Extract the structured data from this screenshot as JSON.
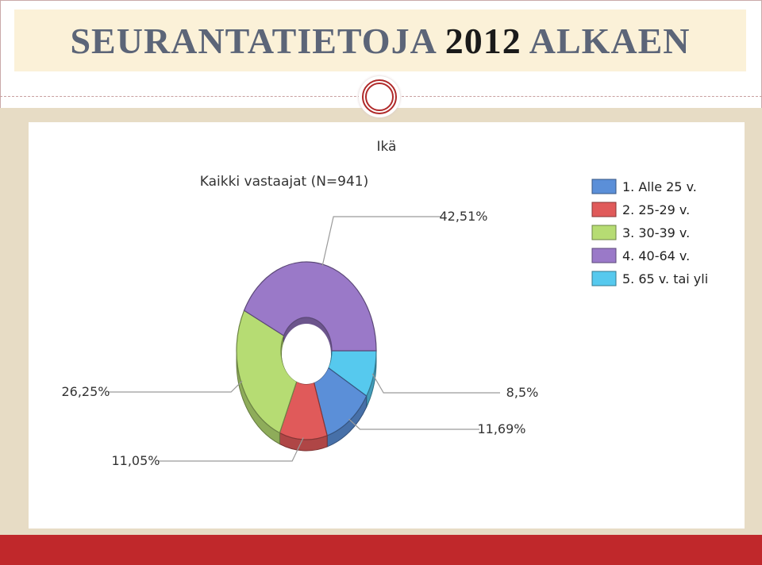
{
  "slide": {
    "title_part1": "SEURANTATIETOJA",
    "title_year": "2012",
    "title_part2": "ALKAEN"
  },
  "colors": {
    "title_text": "#5c6578",
    "footer": "#c0282b",
    "ornament": "#b02a2a"
  },
  "chart_data": {
    "type": "pie",
    "title": "Ikä",
    "subtitle": "Kaikki vastaajat (N=941)",
    "style": "3d-donut",
    "legend_position": "right",
    "categories": [
      "1. Alle 25 v.",
      "2. 25-29 v.",
      "3. 30-39 v.",
      "4. 40-64 v.",
      "5. 65 v. tai yli"
    ],
    "values": [
      11.69,
      11.05,
      26.25,
      42.51,
      8.5
    ],
    "labels": [
      "11,69%",
      "11,05%",
      "26,25%",
      "42,51%",
      "8,5%"
    ],
    "colors": [
      "#5b8fd8",
      "#e05a5a",
      "#b6dc73",
      "#9a79c8",
      "#56c9ee"
    ]
  }
}
